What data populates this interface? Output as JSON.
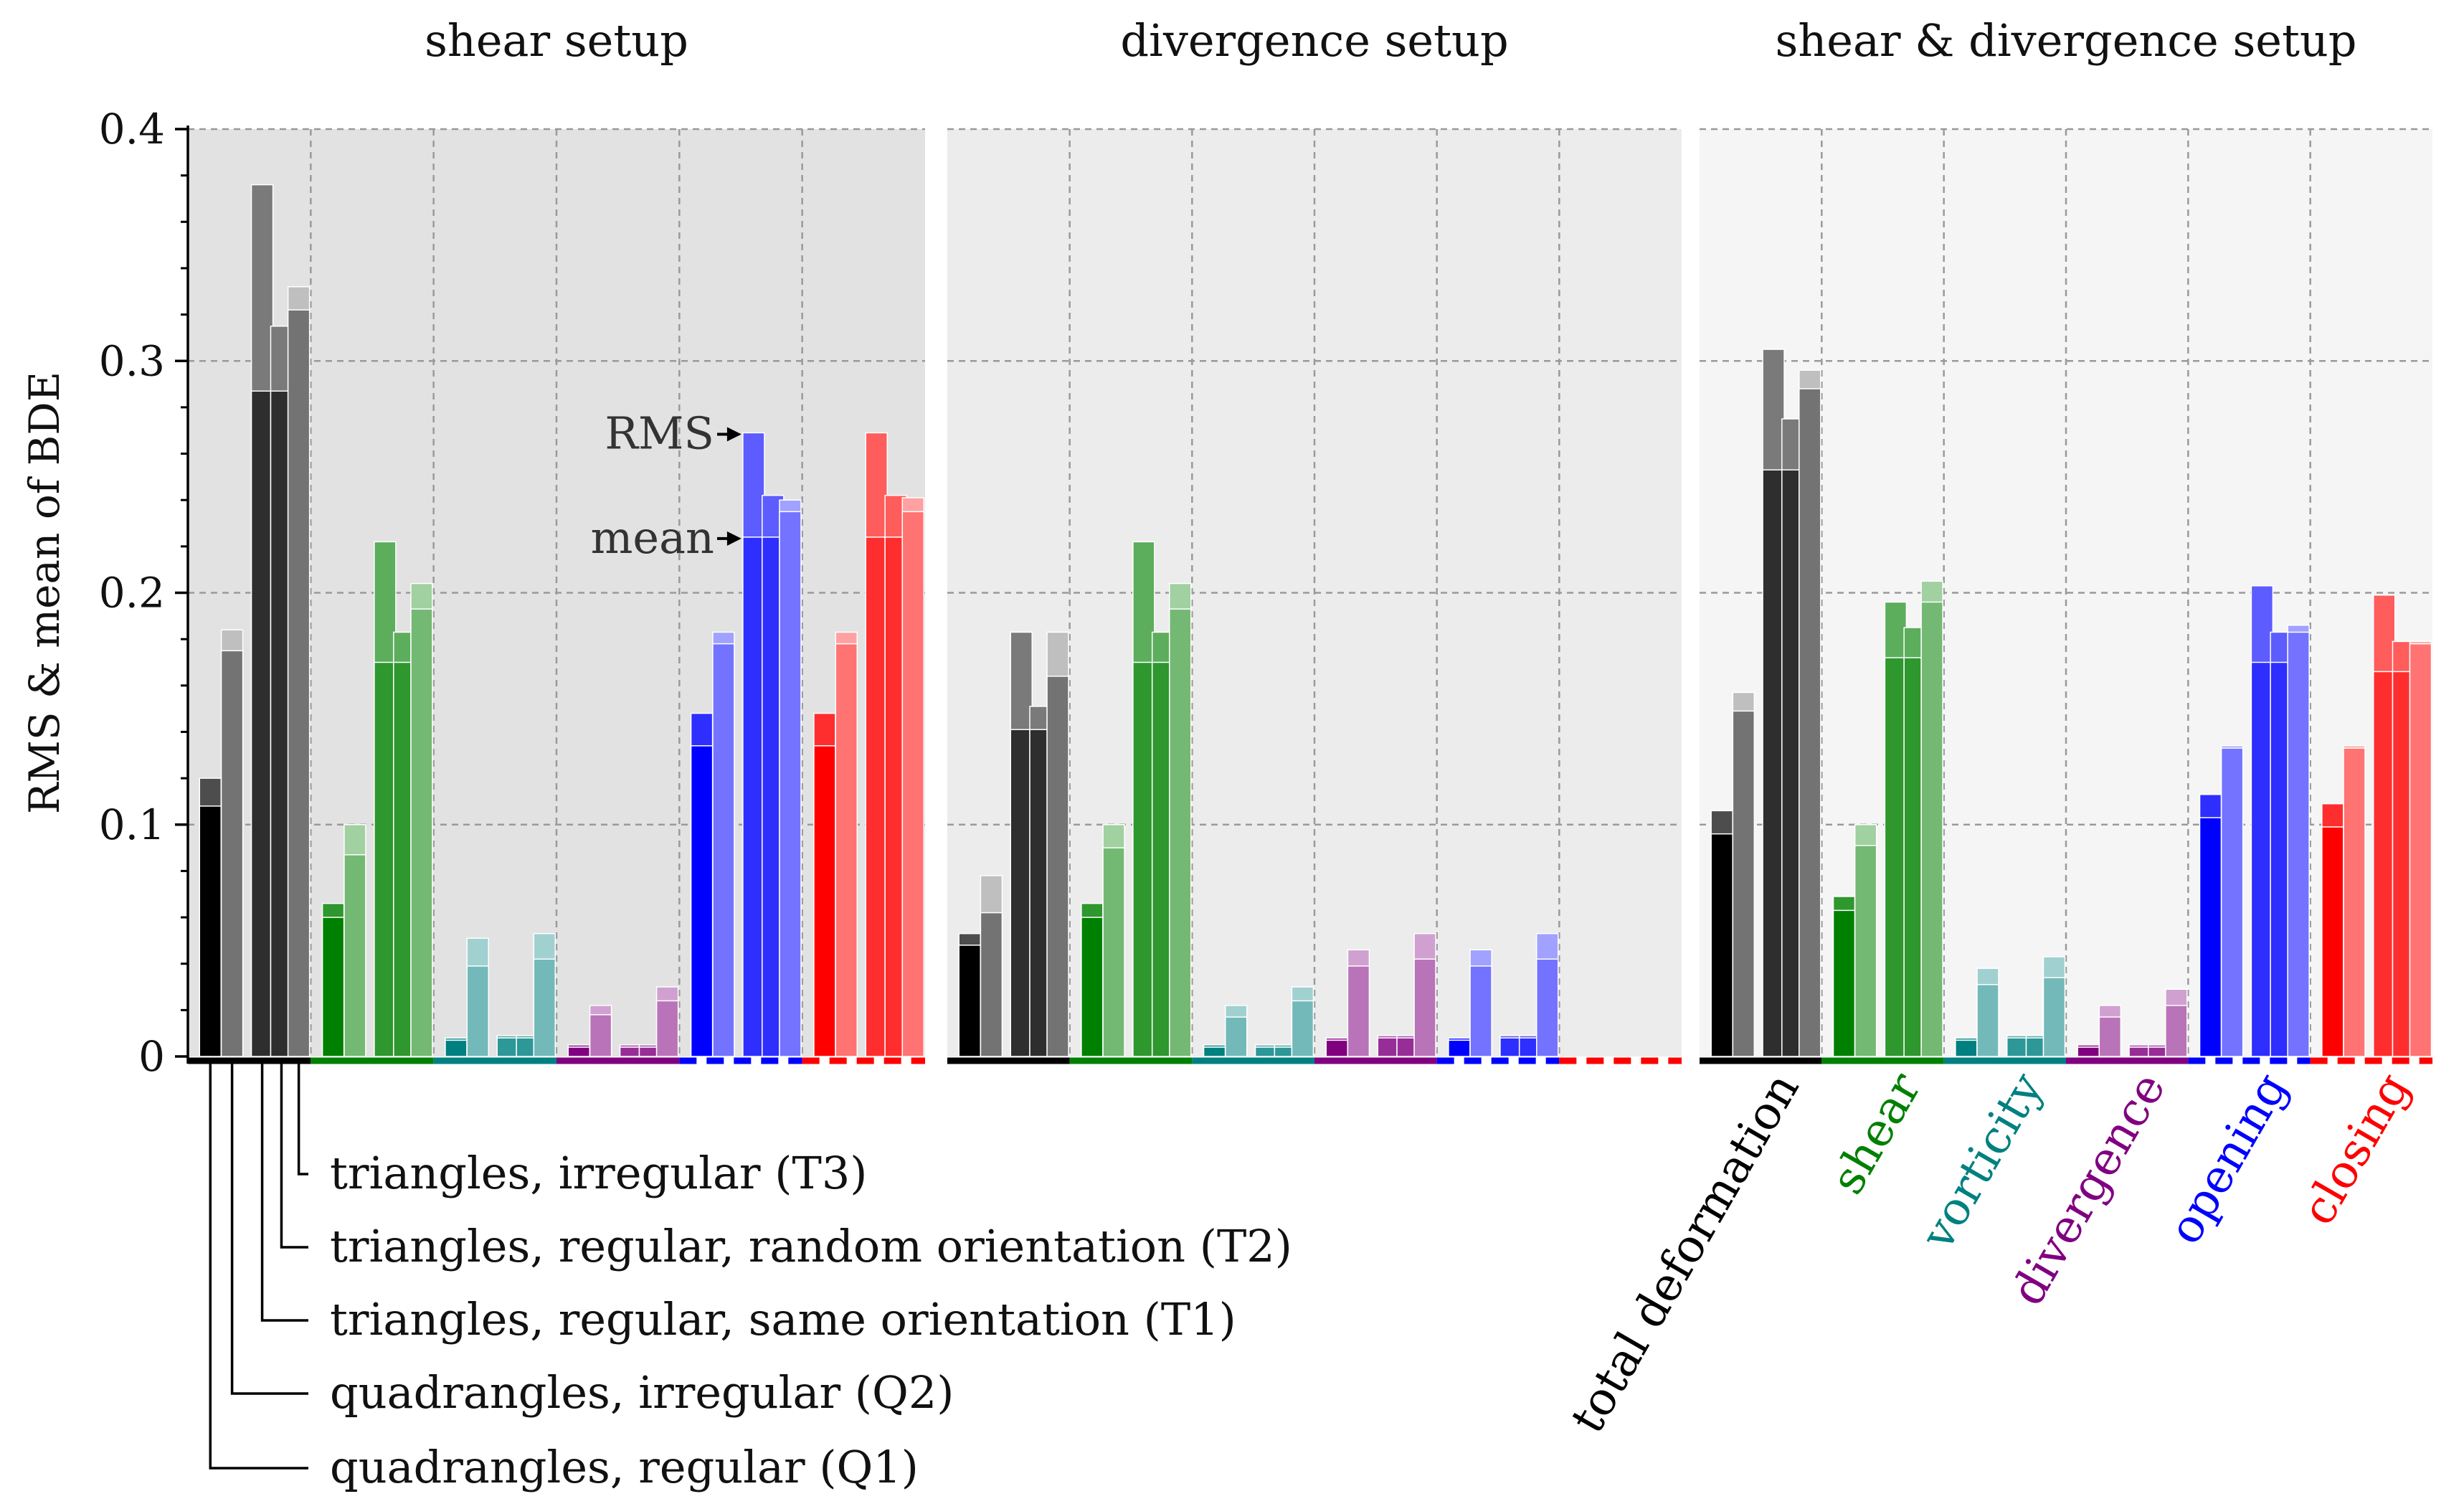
{
  "chart_data": {
    "type": "bar",
    "ylabel": "RMS & mean of BDE",
    "ylim": [
      0,
      0.4
    ],
    "yticks": [
      0,
      0.1,
      0.2,
      0.3,
      0.4
    ],
    "ytick_labels": [
      "0",
      "0.1",
      "0.2",
      "0.3",
      "0.4"
    ],
    "grid": true,
    "panels": [
      {
        "title": "shear setup"
      },
      {
        "title": "divergence setup"
      },
      {
        "title": "shear & divergence setup"
      }
    ],
    "quantities": [
      {
        "key": "total",
        "label": "total deformation",
        "color": "#000000"
      },
      {
        "key": "shear",
        "label": "shear",
        "color": "#008000"
      },
      {
        "key": "vorticity",
        "label": "vorticity",
        "color": "#008080"
      },
      {
        "key": "divergence",
        "label": "divergence",
        "color": "#800080"
      },
      {
        "key": "opening",
        "label": "opening",
        "color": "#0000ff"
      },
      {
        "key": "closing",
        "label": "closing",
        "color": "#ff0000"
      }
    ],
    "meshes": [
      {
        "code": "Q1",
        "label": "quadrangles, regular (Q1)"
      },
      {
        "code": "Q2",
        "label": "quadrangles, irregular (Q2)"
      },
      {
        "code": "T1",
        "label": "triangles, regular, same orientation (T1)"
      },
      {
        "code": "T2",
        "label": "triangles, regular, random orientation (T2)"
      },
      {
        "code": "T3",
        "label": "triangles, irregular (T3)"
      }
    ],
    "series": [
      {
        "panel": 0,
        "quantity": "total",
        "mean": [
          0.108,
          0.175,
          0.287,
          0.287,
          0.322
        ],
        "rms": [
          0.12,
          0.184,
          0.376,
          0.315,
          0.332
        ]
      },
      {
        "panel": 0,
        "quantity": "shear",
        "mean": [
          0.06,
          0.087,
          0.17,
          0.17,
          0.193
        ],
        "rms": [
          0.066,
          0.1,
          0.222,
          0.183,
          0.204
        ]
      },
      {
        "panel": 0,
        "quantity": "vorticity",
        "mean": [
          0.007,
          0.039,
          0.008,
          0.008,
          0.042
        ],
        "rms": [
          0.008,
          0.051,
          0.009,
          0.009,
          0.053
        ]
      },
      {
        "panel": 0,
        "quantity": "divergence",
        "mean": [
          0.004,
          0.018,
          0.004,
          0.004,
          0.024
        ],
        "rms": [
          0.005,
          0.022,
          0.005,
          0.005,
          0.03
        ]
      },
      {
        "panel": 0,
        "quantity": "opening",
        "mean": [
          0.134,
          0.178,
          0.224,
          0.224,
          0.235
        ],
        "rms": [
          0.148,
          0.183,
          0.269,
          0.242,
          0.24
        ]
      },
      {
        "panel": 0,
        "quantity": "closing",
        "mean": [
          0.134,
          0.178,
          0.224,
          0.224,
          0.235
        ],
        "rms": [
          0.148,
          0.183,
          0.269,
          0.242,
          0.241
        ]
      },
      {
        "panel": 1,
        "quantity": "total",
        "mean": [
          0.048,
          0.062,
          0.141,
          0.141,
          0.164
        ],
        "rms": [
          0.053,
          0.078,
          0.183,
          0.151,
          0.183
        ]
      },
      {
        "panel": 1,
        "quantity": "shear",
        "mean": [
          0.06,
          0.09,
          0.17,
          0.17,
          0.193
        ],
        "rms": [
          0.066,
          0.1,
          0.222,
          0.183,
          0.204
        ]
      },
      {
        "panel": 1,
        "quantity": "vorticity",
        "mean": [
          0.004,
          0.017,
          0.004,
          0.004,
          0.024
        ],
        "rms": [
          0.005,
          0.022,
          0.005,
          0.005,
          0.03
        ]
      },
      {
        "panel": 1,
        "quantity": "divergence",
        "mean": [
          0.007,
          0.039,
          0.008,
          0.008,
          0.042
        ],
        "rms": [
          0.008,
          0.046,
          0.009,
          0.009,
          0.053
        ]
      },
      {
        "panel": 1,
        "quantity": "opening",
        "mean": [
          0.007,
          0.039,
          0.008,
          0.008,
          0.042
        ],
        "rms": [
          0.008,
          0.046,
          0.009,
          0.009,
          0.053
        ]
      },
      {
        "panel": 1,
        "quantity": "closing",
        "mean": [
          0,
          0,
          0,
          0,
          0
        ],
        "rms": [
          0,
          0,
          0,
          0,
          0
        ]
      },
      {
        "panel": 2,
        "quantity": "total",
        "mean": [
          0.096,
          0.149,
          0.253,
          0.253,
          0.288
        ],
        "rms": [
          0.106,
          0.157,
          0.305,
          0.275,
          0.296
        ]
      },
      {
        "panel": 2,
        "quantity": "shear",
        "mean": [
          0.063,
          0.091,
          0.172,
          0.172,
          0.196
        ],
        "rms": [
          0.069,
          0.1,
          0.196,
          0.185,
          0.205
        ]
      },
      {
        "panel": 2,
        "quantity": "vorticity",
        "mean": [
          0.007,
          0.031,
          0.008,
          0.008,
          0.034
        ],
        "rms": [
          0.008,
          0.038,
          0.009,
          0.009,
          0.043
        ]
      },
      {
        "panel": 2,
        "quantity": "divergence",
        "mean": [
          0.004,
          0.017,
          0.004,
          0.004,
          0.022
        ],
        "rms": [
          0.005,
          0.022,
          0.005,
          0.005,
          0.029
        ]
      },
      {
        "panel": 2,
        "quantity": "opening",
        "mean": [
          0.103,
          0.133,
          0.17,
          0.17,
          0.183
        ],
        "rms": [
          0.113,
          0.134,
          0.203,
          0.183,
          0.186
        ]
      },
      {
        "panel": 2,
        "quantity": "closing",
        "mean": [
          0.099,
          0.133,
          0.166,
          0.166,
          0.178
        ],
        "rms": [
          0.109,
          0.134,
          0.199,
          0.179,
          0.179
        ]
      }
    ],
    "annotations": [
      {
        "text": "RMS",
        "panel": 0,
        "quantity": "opening",
        "mesh": 2,
        "stat": "rms"
      },
      {
        "text": "mean",
        "panel": 0,
        "quantity": "opening",
        "mesh": 2,
        "stat": "mean"
      }
    ]
  }
}
